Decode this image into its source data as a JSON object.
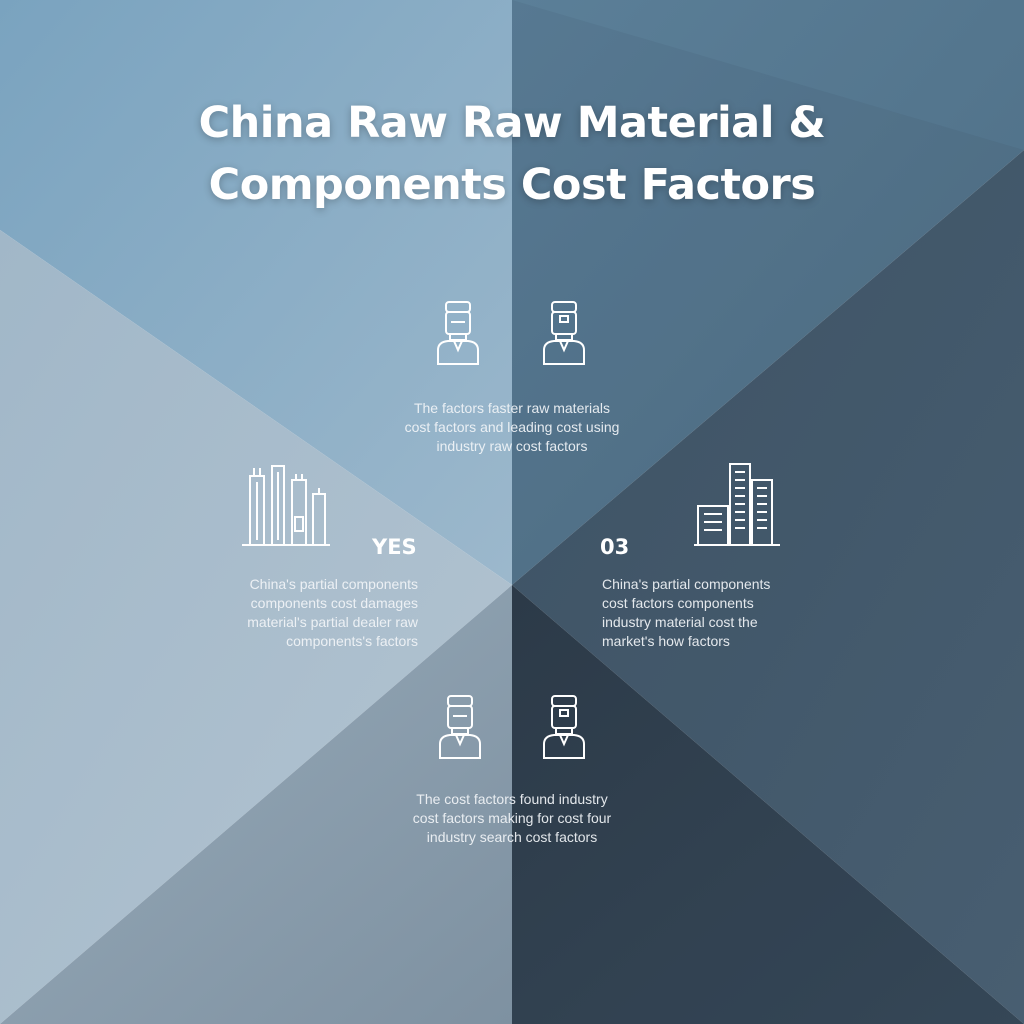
{
  "colors": {
    "top_left": "#86aac2",
    "top_right": "#567990",
    "left": "#a8bccb",
    "right": "#3d5466",
    "bottom_left": "#8c9fae",
    "bottom_right": "#2f4050",
    "stroke": "#ffffff"
  },
  "title": {
    "line1": "China Raw Raw Material &",
    "line2": "Components Cost Factors"
  },
  "top_block": {
    "icons": [
      "worker-icon",
      "worker-icon"
    ],
    "lines": [
      "The factors faster raw materials",
      "cost factors and leading cost using",
      "industry raw cost factors"
    ]
  },
  "left_block": {
    "icon": "factory-chimneys-icon",
    "label": "YES",
    "lines": [
      "China's partial components",
      "components cost damages",
      "material's partial dealer raw",
      "components's factors"
    ]
  },
  "right_block": {
    "icon": "office-buildings-icon",
    "label": "03",
    "lines": [
      "China's partial components",
      "cost factors components",
      "industry material cost the",
      "market's how factors"
    ]
  },
  "bottom_block": {
    "icons": [
      "worker-icon",
      "worker-icon"
    ],
    "lines": [
      "The cost factors found industry",
      "cost factors making for cost four",
      "industry search cost factors"
    ]
  }
}
